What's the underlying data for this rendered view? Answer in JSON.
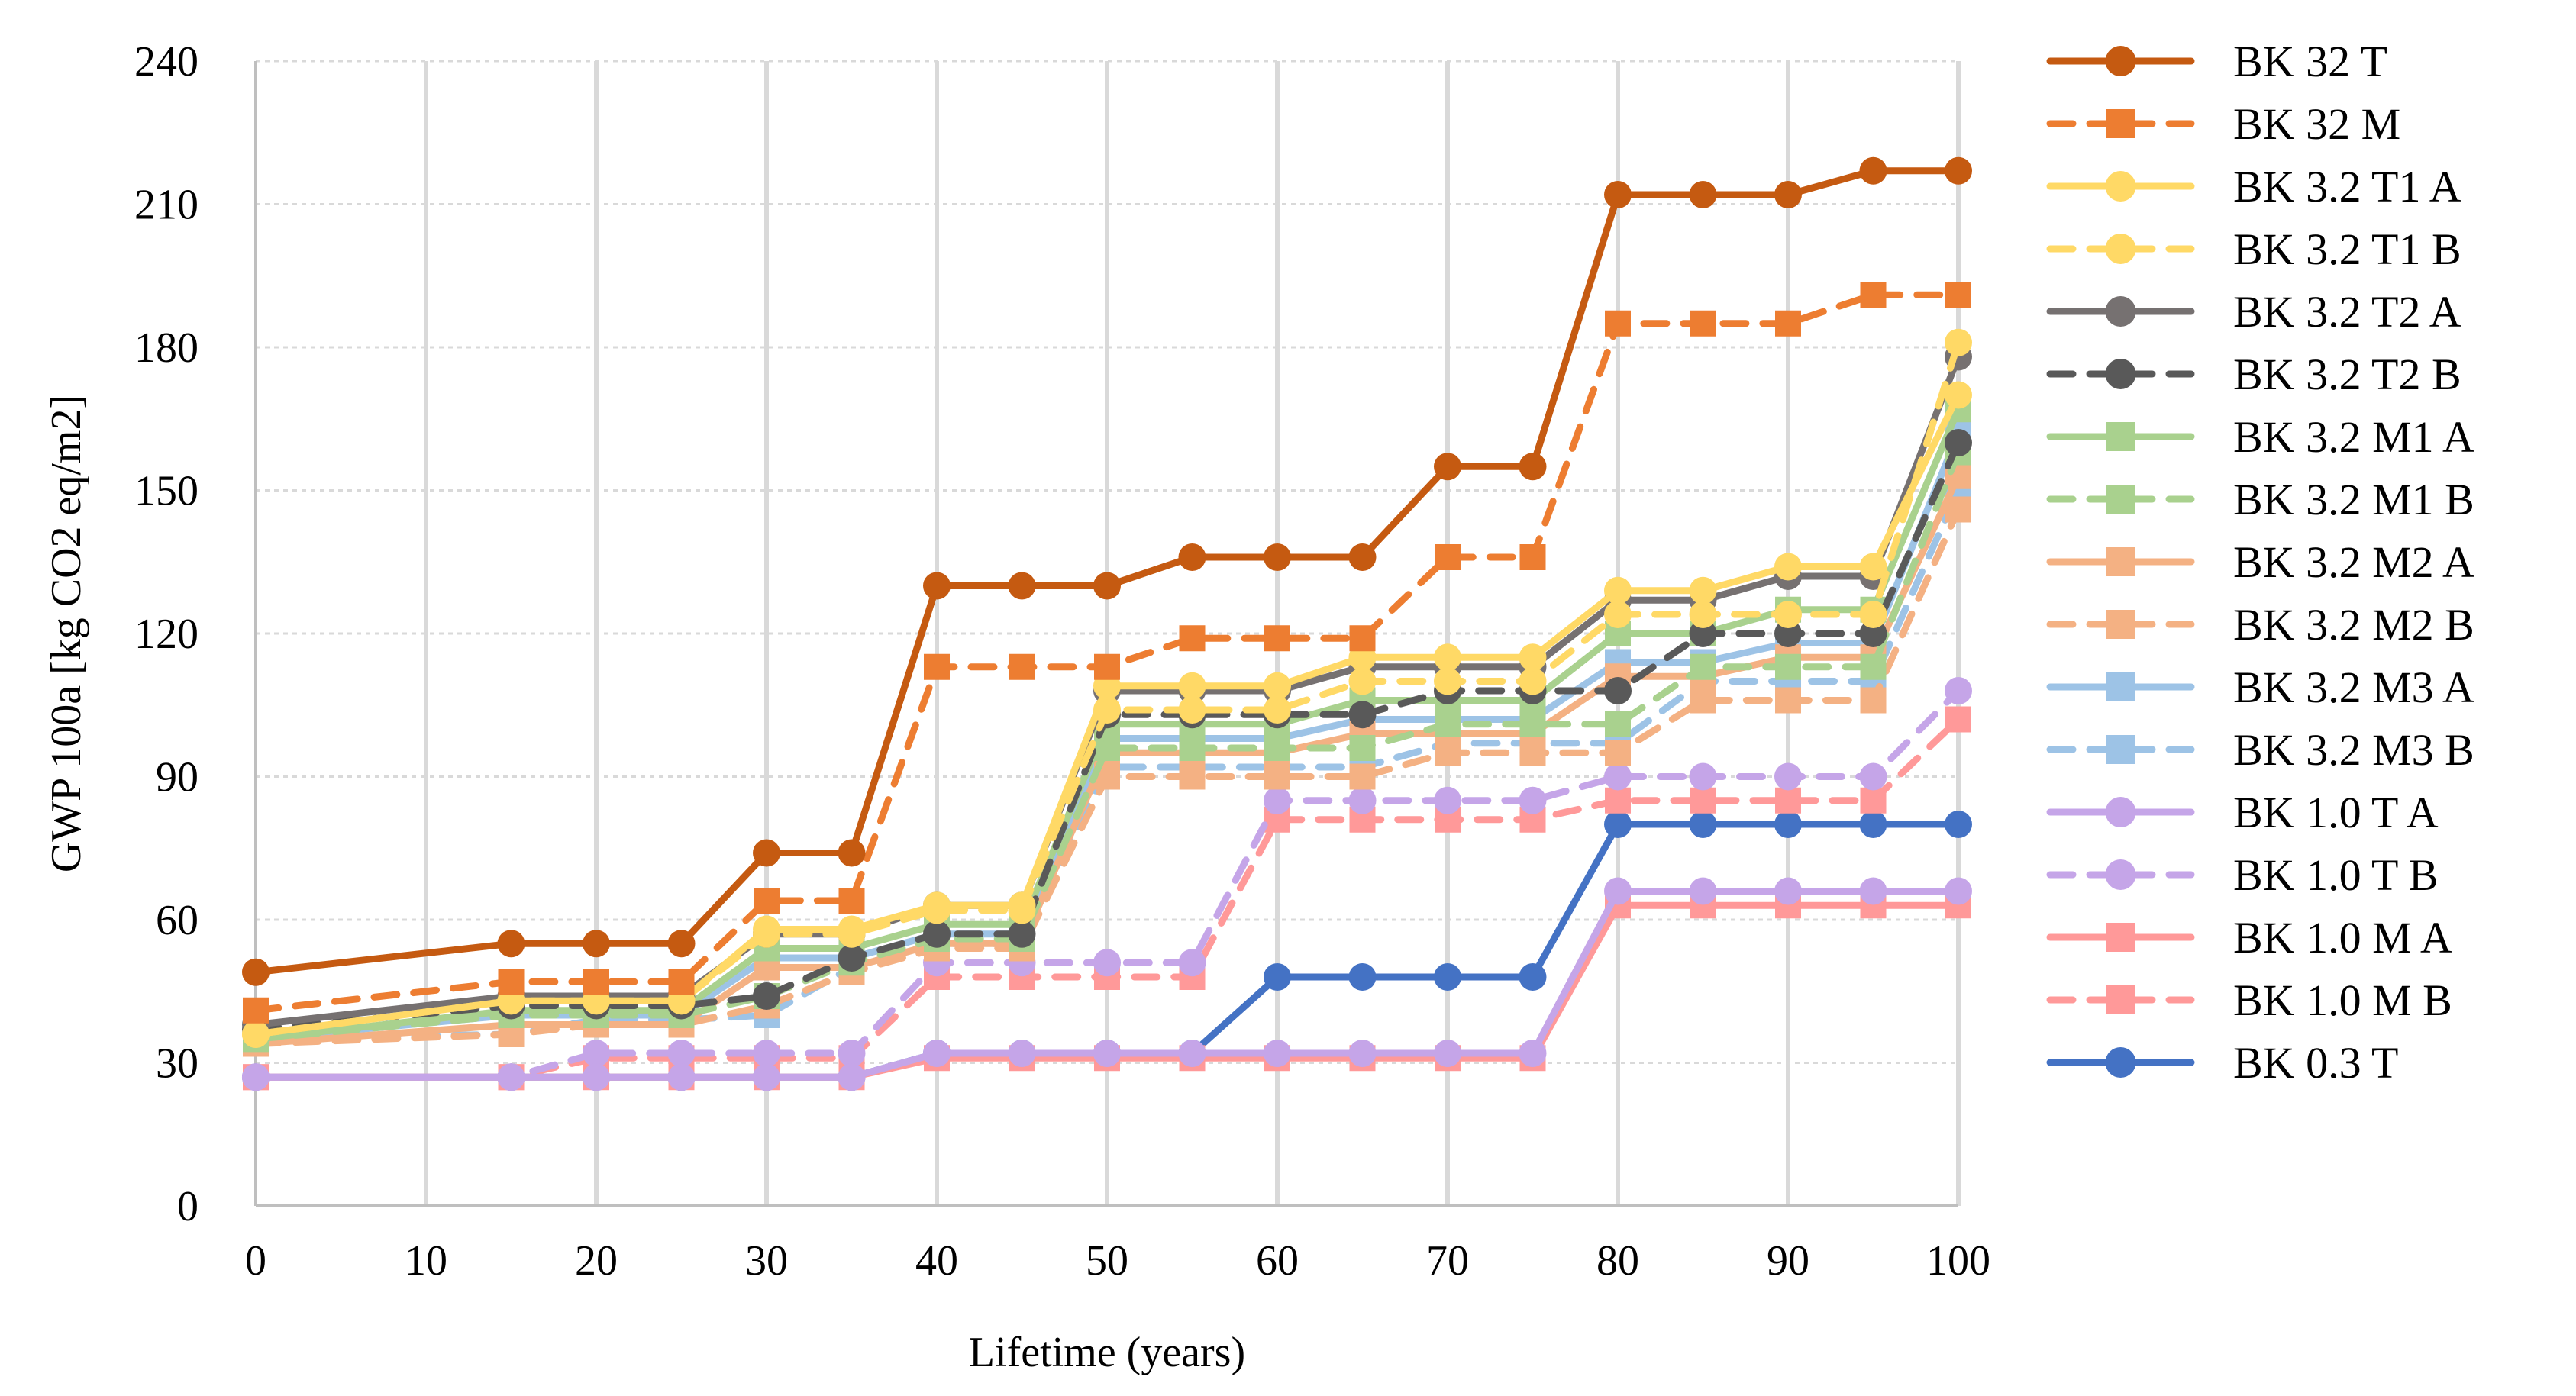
{
  "chart_data": {
    "type": "line",
    "title": "",
    "xlabel": "Lifetime (years)",
    "ylabel": "GWP 100a [kg CO2 eq/m2]",
    "xlim": [
      0,
      100
    ],
    "ylim": [
      0,
      240
    ],
    "xticks": [
      0,
      10,
      20,
      30,
      40,
      50,
      60,
      70,
      80,
      90,
      100
    ],
    "yticks": [
      0,
      30,
      60,
      90,
      120,
      150,
      180,
      210,
      240
    ],
    "grid": true,
    "legend_position": "right",
    "x": [
      0,
      15,
      20,
      25,
      30,
      35,
      40,
      45,
      50,
      55,
      60,
      65,
      70,
      75,
      80,
      85,
      90,
      95,
      100
    ],
    "series": [
      {
        "name": "BK 32 T",
        "color": "#C55A11",
        "dash": "solid",
        "marker": "circle",
        "values": [
          49,
          55,
          55,
          55,
          74,
          74,
          130,
          130,
          130,
          136,
          136,
          136,
          155,
          155,
          212,
          212,
          212,
          217,
          217
        ]
      },
      {
        "name": "BK 32 M",
        "color": "#ED7D31",
        "dash": "dashed",
        "marker": "square",
        "values": [
          41,
          47,
          47,
          47,
          64,
          64,
          113,
          113,
          113,
          119,
          119,
          119,
          136,
          136,
          185,
          185,
          185,
          191,
          191
        ]
      },
      {
        "name": "BK 3.2 T1 A",
        "color": "#FFD966",
        "dash": "solid",
        "marker": "circle",
        "values": [
          36,
          43,
          43,
          43,
          58,
          58,
          63,
          63,
          109,
          109,
          109,
          115,
          115,
          115,
          129,
          129,
          134,
          134,
          170
        ]
      },
      {
        "name": "BK 3.2 T1 B",
        "color": "#FFD966",
        "dash": "dashed",
        "marker": "circle",
        "values": [
          36,
          43,
          43,
          43,
          57,
          57,
          62,
          62,
          104,
          104,
          104,
          110,
          110,
          110,
          124,
          124,
          124,
          124,
          181
        ]
      },
      {
        "name": "BK 3.2 T2 A",
        "color": "#767171",
        "dash": "solid",
        "marker": "circle",
        "values": [
          38,
          44,
          44,
          44,
          57,
          57,
          63,
          63,
          108,
          108,
          108,
          113,
          113,
          113,
          127,
          127,
          132,
          132,
          178
        ]
      },
      {
        "name": "BK 3.2 T2 B",
        "color": "#595959",
        "dash": "dashed",
        "marker": "circle",
        "values": [
          37,
          42,
          42,
          42,
          44,
          52,
          57,
          57,
          103,
          103,
          103,
          103,
          108,
          108,
          108,
          120,
          120,
          120,
          160
        ]
      },
      {
        "name": "BK 3.2 M1 A",
        "color": "#A9D18E",
        "dash": "solid",
        "marker": "square",
        "values": [
          35,
          41,
          41,
          41,
          54,
          54,
          59,
          59,
          101,
          101,
          101,
          106,
          106,
          106,
          120,
          120,
          125,
          125,
          167
        ]
      },
      {
        "name": "BK 3.2 M1 B",
        "color": "#A9D18E",
        "dash": "dashed",
        "marker": "square",
        "values": [
          35,
          40,
          40,
          40,
          44,
          51,
          56,
          56,
          96,
          96,
          96,
          96,
          101,
          101,
          101,
          113,
          113,
          113,
          158
        ]
      },
      {
        "name": "BK 3.2 M2 A",
        "color": "#F4B183",
        "dash": "solid",
        "marker": "square",
        "values": [
          34,
          38,
          38,
          38,
          50,
          50,
          55,
          55,
          95,
          95,
          95,
          99,
          99,
          99,
          111,
          111,
          115,
          115,
          153
        ]
      },
      {
        "name": "BK 3.2 M2 B",
        "color": "#F4B183",
        "dash": "dashed",
        "marker": "square",
        "values": [
          34,
          36,
          38,
          38,
          42,
          49,
          54,
          54,
          90,
          90,
          90,
          90,
          95,
          95,
          95,
          106,
          106,
          106,
          146
        ]
      },
      {
        "name": "BK 3.2 M3 A",
        "color": "#9DC3E6",
        "dash": "solid",
        "marker": "square",
        "values": [
          35,
          40,
          40,
          40,
          52,
          52,
          57,
          57,
          98,
          98,
          98,
          102,
          102,
          102,
          114,
          114,
          118,
          118,
          162
        ]
      },
      {
        "name": "BK 3.2 M3 B",
        "color": "#9DC3E6",
        "dash": "dashed",
        "marker": "square",
        "values": [
          35,
          36,
          39,
          39,
          40,
          50,
          55,
          55,
          92,
          92,
          92,
          92,
          97,
          97,
          97,
          110,
          110,
          110,
          150
        ]
      },
      {
        "name": "BK 1.0 T A",
        "color": "#C5A5E8",
        "dash": "solid",
        "marker": "circle",
        "values": [
          27,
          27,
          27,
          27,
          27,
          27,
          32,
          32,
          32,
          32,
          32,
          32,
          32,
          32,
          66,
          66,
          66,
          66,
          66
        ]
      },
      {
        "name": "BK 1.0 T B",
        "color": "#C5A5E8",
        "dash": "dashed",
        "marker": "circle",
        "values": [
          27,
          27,
          32,
          32,
          32,
          32,
          51,
          51,
          51,
          51,
          85,
          85,
          85,
          85,
          90,
          90,
          90,
          90,
          108
        ]
      },
      {
        "name": "BK 1.0 M A",
        "color": "#FF9999",
        "dash": "solid",
        "marker": "square",
        "values": [
          27,
          27,
          27,
          27,
          27,
          27,
          31,
          31,
          31,
          31,
          31,
          31,
          31,
          31,
          63,
          63,
          63,
          63,
          63
        ]
      },
      {
        "name": "BK 1.0 M B",
        "color": "#FF9999",
        "dash": "dashed",
        "marker": "square",
        "values": [
          27,
          27,
          31,
          31,
          31,
          31,
          48,
          48,
          48,
          48,
          81,
          81,
          81,
          81,
          85,
          85,
          85,
          85,
          102
        ]
      },
      {
        "name": "BK 0.3 T",
        "color": "#4472C4",
        "dash": "solid",
        "marker": "circle",
        "values": [
          27,
          27,
          27,
          27,
          27,
          27,
          32,
          32,
          32,
          32,
          48,
          48,
          48,
          48,
          80,
          80,
          80,
          80,
          80
        ]
      }
    ]
  }
}
